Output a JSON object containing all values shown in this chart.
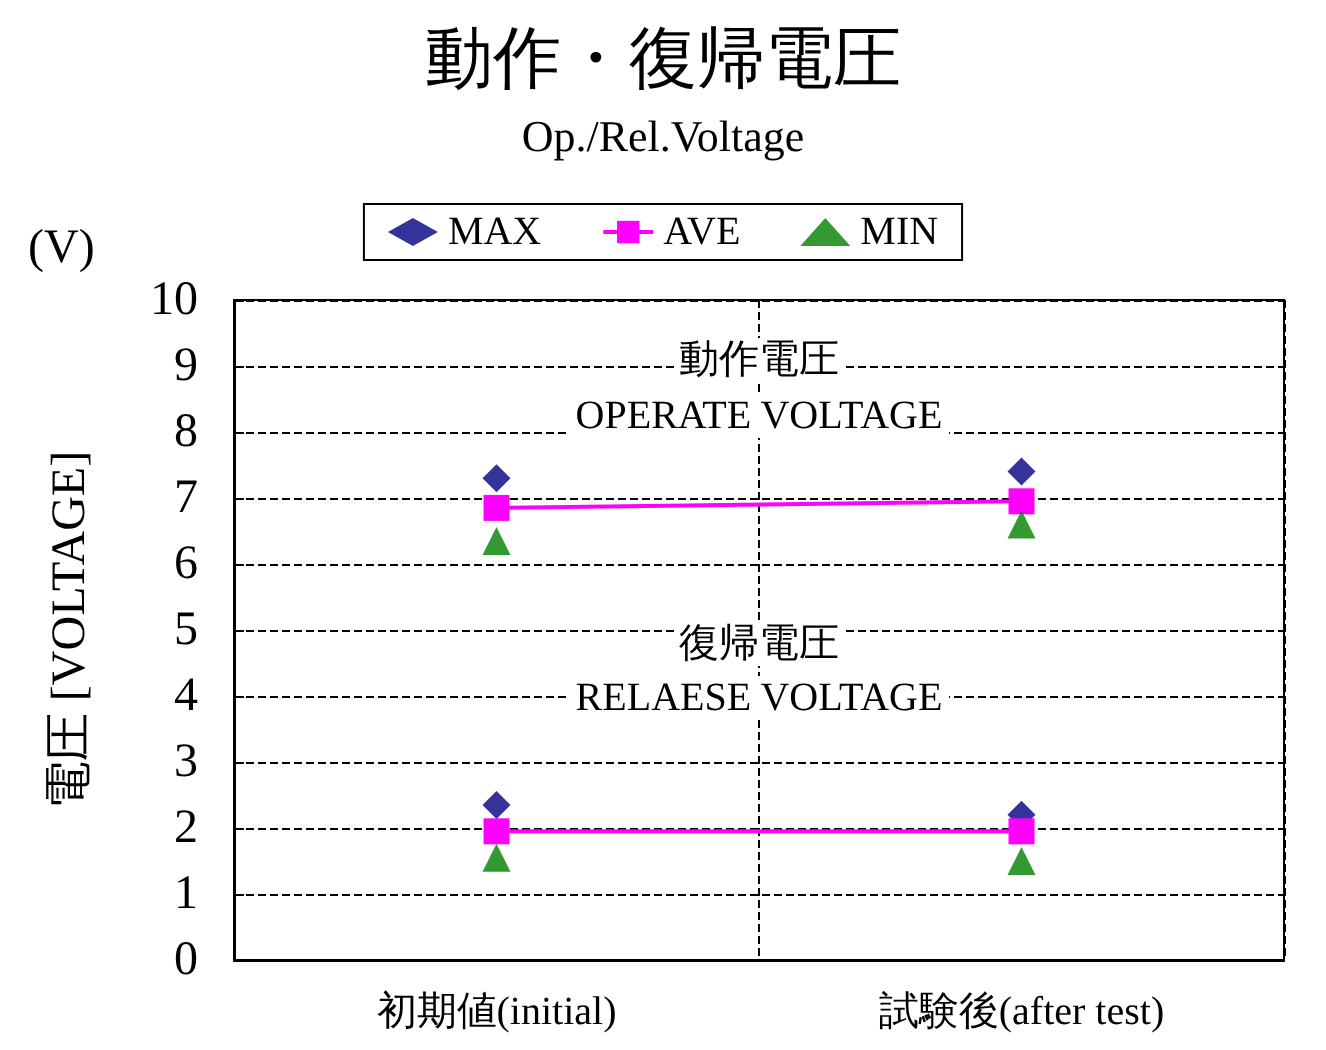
{
  "chart_data": {
    "type": "scatter",
    "title": "動作・復帰電圧",
    "subtitle": "Op./Rel.Voltage",
    "ylabel": "電圧 [VOLTAGE]",
    "categories": [
      "初期値(initial)",
      "試験後(after test)"
    ],
    "series": [
      {
        "name": "MAX",
        "marker": "diamond",
        "color": "#000080",
        "values": [
          7.3,
          7.4
        ]
      },
      {
        "name": "AVE",
        "type": "line",
        "marker": "square",
        "color": "#ff00ff",
        "values": [
          6.85,
          6.95
        ]
      },
      {
        "name": "MIN",
        "marker": "triangle",
        "color": "#008000",
        "values": [
          6.35,
          6.6
        ]
      },
      {
        "marker": "diamond",
        "color": "#000080",
        "values": [
          2.35,
          2.2
        ]
      },
      {
        "type": "line",
        "marker": "square",
        "color": "#ff00ff",
        "values": [
          1.95,
          1.95
        ]
      },
      {
        "marker": "triangle",
        "color": "#008000",
        "values": [
          1.55,
          1.5
        ]
      }
    ],
    "ylim": [
      0,
      10
    ],
    "yticks": [
      0,
      1,
      2,
      3,
      4,
      5,
      6,
      7,
      8,
      9,
      10
    ],
    "grid": true,
    "legend": "top",
    "annotations": [
      "(V)",
      "動作電圧",
      "OPERATE VOLTAGE",
      "復帰電圧",
      "RELAESE VOLTAGE"
    ]
  }
}
